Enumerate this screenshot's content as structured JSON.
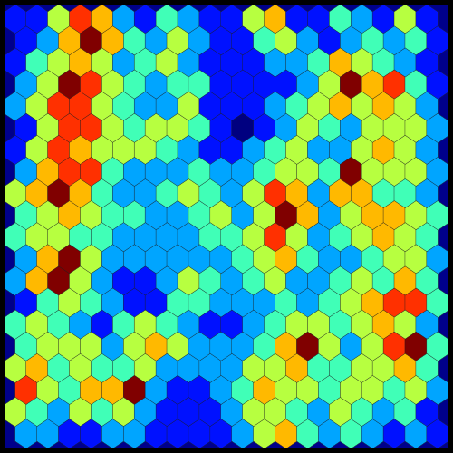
{
  "chart_data": {
    "type": "heatmap",
    "color": "jet",
    "tick_labels": false,
    "cells": [
      [
        2,
        2,
        5,
        7,
        6,
        3,
        2,
        4,
        3,
        2,
        2,
        5,
        6,
        2,
        2,
        4,
        3,
        2,
        5,
        2
      ],
      [
        2,
        3,
        6,
        8,
        6,
        4,
        3,
        5,
        3,
        2,
        2,
        4,
        5,
        3,
        2,
        3,
        4,
        3,
        4,
        2
      ],
      [
        2,
        4,
        5,
        6,
        5,
        3,
        4,
        5,
        3,
        2,
        2,
        2,
        3,
        3,
        4,
        6,
        5,
        4,
        3,
        2
      ],
      [
        3,
        5,
        8,
        7,
        5,
        4,
        3,
        4,
        4,
        2,
        2,
        2,
        2,
        3,
        5,
        8,
        6,
        7,
        4,
        2
      ],
      [
        3,
        5,
        7,
        7,
        5,
        4,
        3,
        3,
        5,
        2,
        2,
        2,
        3,
        4,
        5,
        6,
        5,
        6,
        5,
        3
      ],
      [
        2,
        5,
        7,
        7,
        5,
        4,
        5,
        5,
        4,
        2,
        1,
        2,
        3,
        5,
        4,
        3,
        5,
        5,
        5,
        3
      ],
      [
        2,
        5,
        7,
        6,
        5,
        5,
        5,
        4,
        3,
        2,
        2,
        3,
        4,
        5,
        3,
        3,
        5,
        6,
        5,
        3
      ],
      [
        3,
        6,
        7,
        7,
        4,
        3,
        3,
        3,
        4,
        3,
        3,
        4,
        5,
        5,
        4,
        8,
        5,
        5,
        5,
        3
      ],
      [
        5,
        6,
        8,
        6,
        4,
        3,
        3,
        4,
        5,
        4,
        3,
        5,
        7,
        6,
        3,
        6,
        6,
        4,
        4,
        3
      ],
      [
        4,
        5,
        6,
        5,
        4,
        4,
        3,
        3,
        4,
        5,
        3,
        5,
        8,
        6,
        3,
        5,
        6,
        6,
        5,
        4
      ],
      [
        4,
        5,
        5,
        4,
        4,
        3,
        3,
        3,
        3,
        4,
        4,
        5,
        7,
        5,
        3,
        4,
        5,
        6,
        5,
        4
      ],
      [
        3,
        6,
        8,
        5,
        3,
        3,
        3,
        3,
        3,
        3,
        4,
        5,
        6,
        4,
        3,
        3,
        4,
        5,
        5,
        3
      ],
      [
        3,
        6,
        8,
        5,
        3,
        2,
        2,
        3,
        5,
        4,
        3,
        4,
        5,
        3,
        3,
        4,
        5,
        4,
        6,
        4
      ],
      [
        2,
        4,
        5,
        4,
        3,
        2,
        2,
        4,
        4,
        3,
        3,
        3,
        4,
        3,
        4,
        5,
        6,
        7,
        7,
        4
      ],
      [
        4,
        5,
        4,
        3,
        2,
        4,
        5,
        4,
        3,
        2,
        2,
        3,
        4,
        5,
        5,
        4,
        5,
        6,
        5,
        3
      ],
      [
        4,
        5,
        5,
        5,
        3,
        5,
        6,
        5,
        3,
        3,
        3,
        4,
        6,
        8,
        5,
        3,
        5,
        7,
        8,
        4
      ],
      [
        5,
        6,
        4,
        5,
        4,
        4,
        5,
        3,
        3,
        3,
        3,
        5,
        5,
        6,
        4,
        4,
        5,
        5,
        6,
        4
      ],
      [
        7,
        5,
        4,
        6,
        6,
        8,
        3,
        2,
        2,
        3,
        4,
        6,
        5,
        5,
        4,
        5,
        5,
        4,
        5,
        3
      ],
      [
        5,
        4,
        3,
        5,
        4,
        5,
        3,
        2,
        2,
        2,
        3,
        5,
        5,
        4,
        3,
        5,
        4,
        3,
        4,
        2
      ],
      [
        3,
        3,
        2,
        2,
        3,
        3,
        2,
        2,
        2,
        2,
        3,
        5,
        6,
        4,
        3,
        4,
        3,
        2,
        3,
        2
      ]
    ]
  }
}
